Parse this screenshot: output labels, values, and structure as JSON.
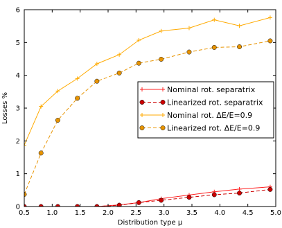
{
  "chart_data": {
    "type": "line",
    "xlabel": "Distribution type μ",
    "ylabel": "Losses %",
    "xlim": [
      0.5,
      5.0
    ],
    "ylim": [
      0,
      6
    ],
    "xticks": [
      0.5,
      1.0,
      1.5,
      2.0,
      2.5,
      3.0,
      3.5,
      4.0,
      4.5,
      5.0
    ],
    "xtick_labels": [
      "0.5",
      "1.0",
      "1.5",
      "2.0",
      "2.5",
      "3.0",
      "3.5",
      "4.0",
      "4.5",
      "5.0"
    ],
    "yticks": [
      0,
      1,
      2,
      3,
      4,
      5,
      6
    ],
    "ytick_labels": [
      "0",
      "1",
      "2",
      "3",
      "4",
      "5",
      "6"
    ],
    "grid": false,
    "legend_position": "center-right",
    "series": [
      {
        "name": "Nominal rot. separatrix",
        "color": "#ff2020",
        "line": "solid",
        "marker": "plus",
        "x": [
          0.5,
          0.8,
          1.1,
          1.45,
          1.8,
          2.2,
          2.55,
          2.95,
          3.45,
          3.9,
          4.35,
          4.9
        ],
        "y": [
          0.0,
          0.0,
          0.0,
          0.0,
          0.0,
          0.05,
          0.12,
          0.24,
          0.35,
          0.45,
          0.53,
          0.6
        ]
      },
      {
        "name": "Linearized rot. separatrix",
        "color": "#cc0000",
        "line": "dashed",
        "marker": "circle",
        "x": [
          0.5,
          0.8,
          1.1,
          1.45,
          1.8,
          2.2,
          2.55,
          2.95,
          3.45,
          3.9,
          4.35,
          4.9
        ],
        "y": [
          0.0,
          0.0,
          0.0,
          0.0,
          0.0,
          0.04,
          0.12,
          0.19,
          0.28,
          0.36,
          0.41,
          0.52
        ]
      },
      {
        "name": "Nominal rot. ΔE/E=0.9",
        "color": "#ffaa00",
        "line": "solid",
        "marker": "plus",
        "x": [
          0.5,
          0.8,
          1.1,
          1.45,
          1.8,
          2.2,
          2.55,
          2.95,
          3.45,
          3.9,
          4.35,
          4.9
        ],
        "y": [
          1.87,
          3.05,
          3.52,
          3.9,
          4.35,
          4.63,
          5.07,
          5.35,
          5.44,
          5.69,
          5.51,
          5.76
        ]
      },
      {
        "name": "Linearized rot. ΔE/E=0.9",
        "color": "#e89400",
        "line": "dashed",
        "marker": "circle",
        "x": [
          0.5,
          0.8,
          1.1,
          1.45,
          1.8,
          2.2,
          2.55,
          2.95,
          3.45,
          3.9,
          4.35,
          4.9
        ],
        "y": [
          0.37,
          1.63,
          2.63,
          3.3,
          3.82,
          4.07,
          4.37,
          4.49,
          4.71,
          4.85,
          4.87,
          5.05
        ]
      }
    ]
  }
}
